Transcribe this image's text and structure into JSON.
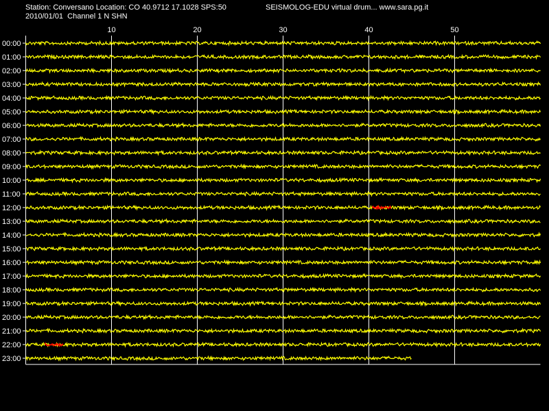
{
  "header": {
    "station_info": "Station: Conversano Location: CO 40.9712 17.1028 SPS:50",
    "date_channel": "2010/01/01  Channel 1 N SHN",
    "app_title": "SEISMOLOG-EDU virtual drum... www.sara.pg.it"
  },
  "colors": {
    "background": "#000000",
    "trace": "#ffff00",
    "event": "#ff0000",
    "grid": "#ffffff",
    "text": "#ffffff"
  },
  "drum": {
    "minute_ticks": [
      "10",
      "20",
      "30",
      "40",
      "50"
    ],
    "hour_labels": [
      "00:00",
      "01:00",
      "02:00",
      "03:00",
      "04:00",
      "05:00",
      "06:00",
      "07:00",
      "08:00",
      "09:00",
      "10:00",
      "11:00",
      "12:00",
      "13:00",
      "14:00",
      "15:00",
      "16:00",
      "17:00",
      "18:00",
      "19:00",
      "20:00",
      "21:00",
      "22:00",
      "23:00"
    ],
    "last_line_minutes": 45,
    "events": [
      {
        "hour": "12:00",
        "start_minute": 40.4,
        "end_minute": 42.6
      },
      {
        "hour": "22:00",
        "start_minute": 2.2,
        "end_minute": 4.4
      }
    ]
  }
}
